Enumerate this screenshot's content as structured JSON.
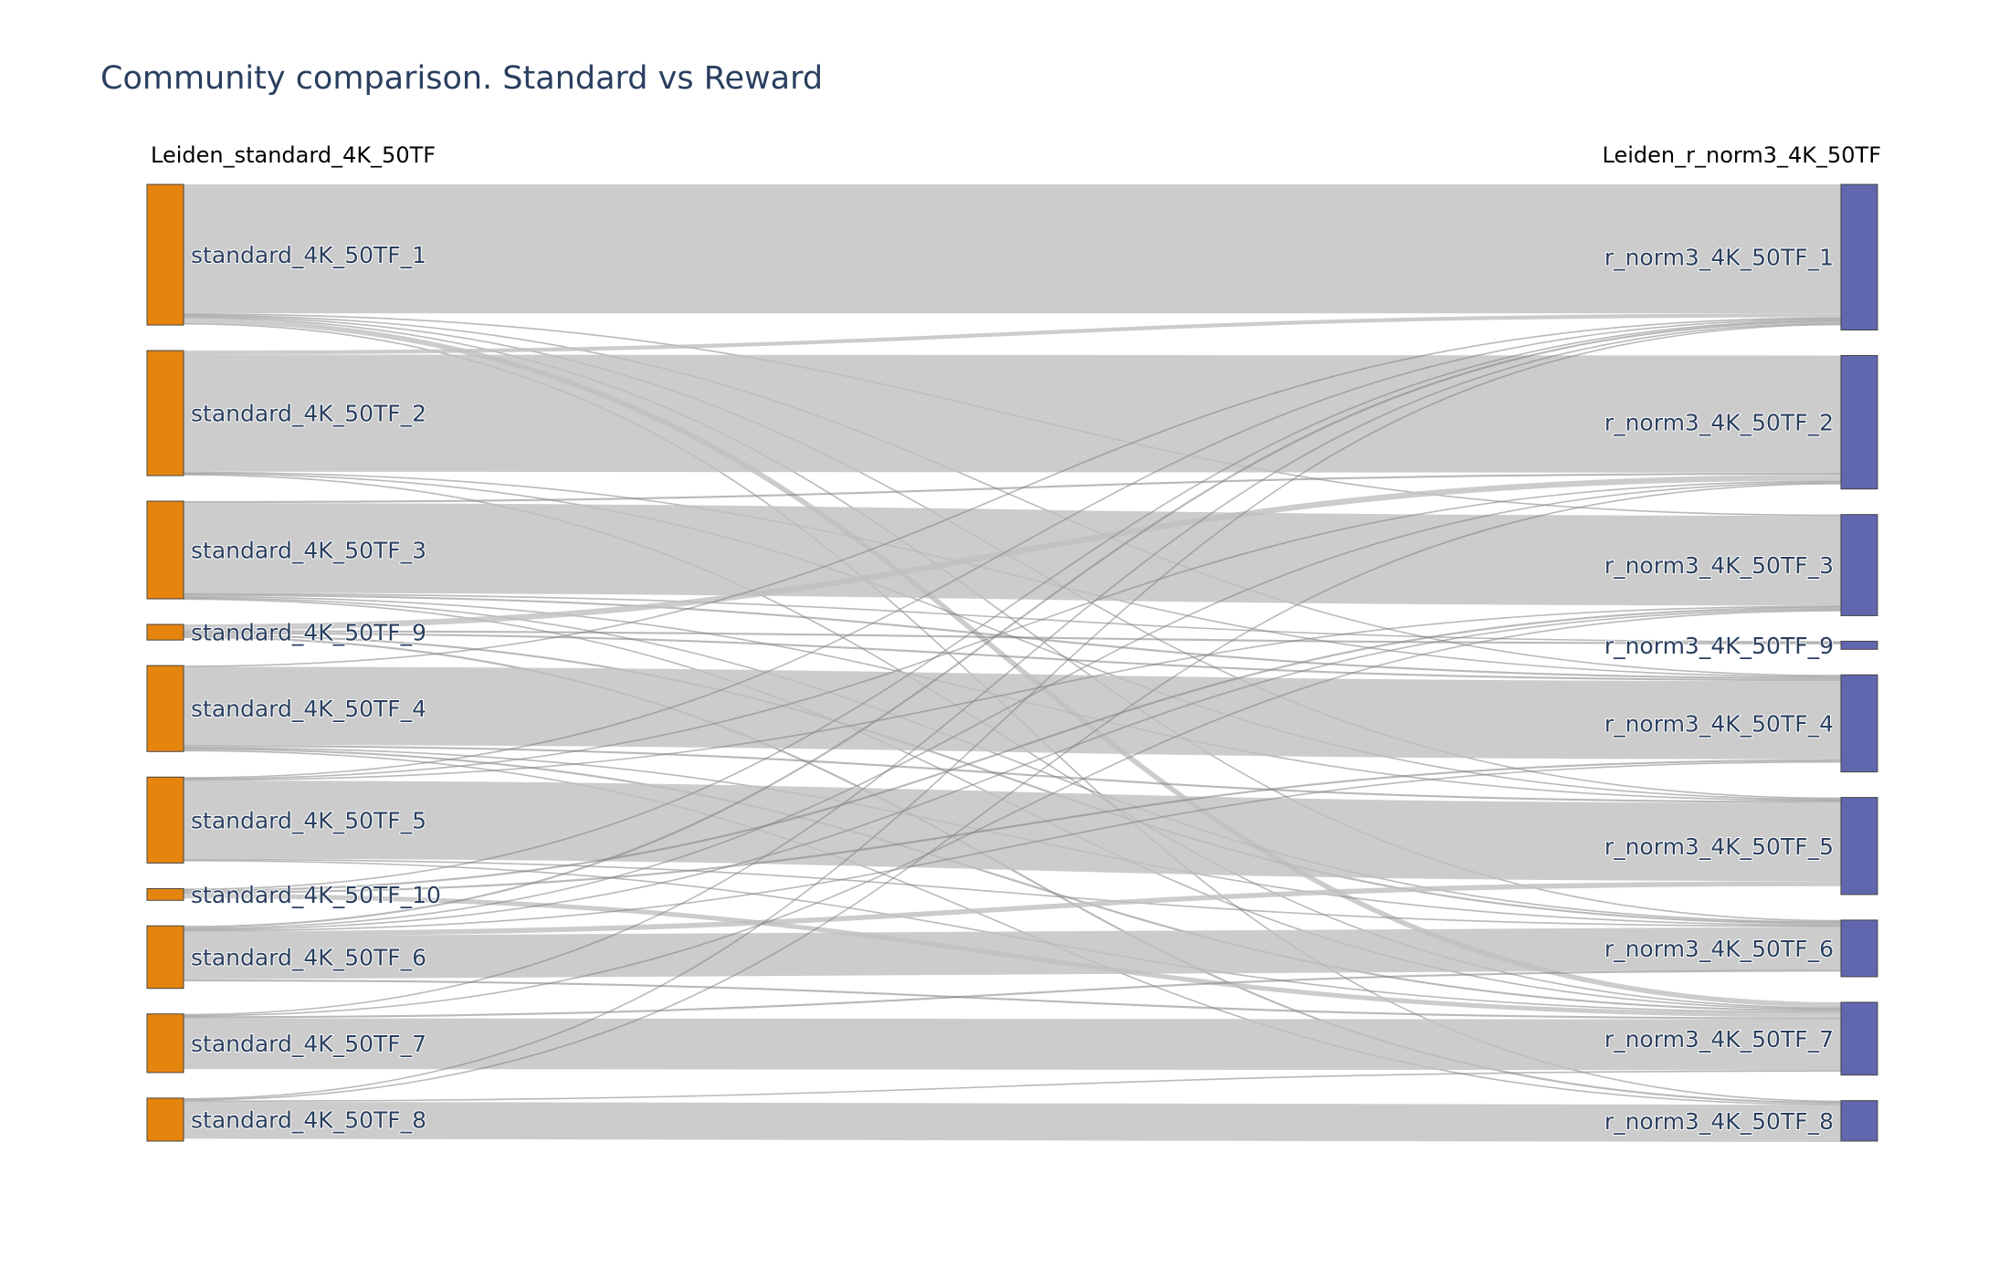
{
  "title": "Community comparison. Standard vs Reward",
  "chart_data": {
    "type": "sankey",
    "title": "Community comparison. Standard vs Reward",
    "left_axis_title": "Leiden_standard_4K_50TF",
    "right_axis_title": "Leiden_r_norm3_4K_50TF",
    "colors": {
      "left_node": "#e6850e",
      "right_node": "#6067ae",
      "link": "#bfbfbf",
      "link_dark": "#7f7f7f",
      "node_border": "#444444"
    },
    "left_nodes": [
      {
        "id": "s1",
        "label": "standard_4K_50TF_1",
        "value": 36
      },
      {
        "id": "s2",
        "label": "standard_4K_50TF_2",
        "value": 32
      },
      {
        "id": "s3",
        "label": "standard_4K_50TF_3",
        "value": 25
      },
      {
        "id": "s9",
        "label": "standard_4K_50TF_9",
        "value": 4
      },
      {
        "id": "s4",
        "label": "standard_4K_50TF_4",
        "value": 22
      },
      {
        "id": "s5",
        "label": "standard_4K_50TF_5",
        "value": 22
      },
      {
        "id": "s10",
        "label": "standard_4K_50TF_10",
        "value": 3
      },
      {
        "id": "s6",
        "label": "standard_4K_50TF_6",
        "value": 16
      },
      {
        "id": "s7",
        "label": "standard_4K_50TF_7",
        "value": 15
      },
      {
        "id": "s8",
        "label": "standard_4K_50TF_8",
        "value": 11
      }
    ],
    "right_nodes": [
      {
        "id": "r1",
        "label": "r_norm3_4K_50TF_1",
        "value": 36
      },
      {
        "id": "r2",
        "label": "r_norm3_4K_50TF_2",
        "value": 33
      },
      {
        "id": "r3",
        "label": "r_norm3_4K_50TF_3",
        "value": 25
      },
      {
        "id": "r9",
        "label": "r_norm3_4K_50TF_9",
        "value": 2
      },
      {
        "id": "r4",
        "label": "r_norm3_4K_50TF_4",
        "value": 24
      },
      {
        "id": "r5",
        "label": "r_norm3_4K_50TF_5",
        "value": 24
      },
      {
        "id": "r6",
        "label": "r_norm3_4K_50TF_6",
        "value": 14
      },
      {
        "id": "r7",
        "label": "r_norm3_4K_50TF_7",
        "value": 18
      },
      {
        "id": "r8",
        "label": "r_norm3_4K_50TF_8",
        "value": 10
      }
    ],
    "links": [
      {
        "source": "s1",
        "target": "r1",
        "value": 33
      },
      {
        "source": "s1",
        "target": "r3",
        "value": 0.3
      },
      {
        "source": "s1",
        "target": "r4",
        "value": 0.3
      },
      {
        "source": "s1",
        "target": "r5",
        "value": 0.3
      },
      {
        "source": "s1",
        "target": "r6",
        "value": 0.3
      },
      {
        "source": "s1",
        "target": "r7",
        "value": 1.3
      },
      {
        "source": "s1",
        "target": "r8",
        "value": 0.3
      },
      {
        "source": "s2",
        "target": "r1",
        "value": 1
      },
      {
        "source": "s2",
        "target": "r2",
        "value": 30
      },
      {
        "source": "s2",
        "target": "r4",
        "value": 0.3
      },
      {
        "source": "s2",
        "target": "r5",
        "value": 0.3
      },
      {
        "source": "s2",
        "target": "r7",
        "value": 0.3
      },
      {
        "source": "s3",
        "target": "r2",
        "value": 0.5
      },
      {
        "source": "s3",
        "target": "r3",
        "value": 23
      },
      {
        "source": "s3",
        "target": "r9",
        "value": 0.3
      },
      {
        "source": "s3",
        "target": "r4",
        "value": 0.5
      },
      {
        "source": "s3",
        "target": "r5",
        "value": 0.3
      },
      {
        "source": "s3",
        "target": "r6",
        "value": 0.3
      },
      {
        "source": "s3",
        "target": "r7",
        "value": 0.3
      },
      {
        "source": "s9",
        "target": "r2",
        "value": 1.5
      },
      {
        "source": "s9",
        "target": "r9",
        "value": 0.5
      },
      {
        "source": "s9",
        "target": "r4",
        "value": 0.5
      },
      {
        "source": "s9",
        "target": "r6",
        "value": 0.5
      },
      {
        "source": "s9",
        "target": "r8",
        "value": 0.5
      },
      {
        "source": "s4",
        "target": "r1",
        "value": 0.3
      },
      {
        "source": "s4",
        "target": "r4",
        "value": 20
      },
      {
        "source": "s4",
        "target": "r5",
        "value": 0.5
      },
      {
        "source": "s4",
        "target": "r6",
        "value": 0.3
      },
      {
        "source": "s4",
        "target": "r7",
        "value": 0.5
      },
      {
        "source": "s4",
        "target": "r8",
        "value": 0.3
      },
      {
        "source": "s5",
        "target": "r1",
        "value": 0.3
      },
      {
        "source": "s5",
        "target": "r2",
        "value": 0.3
      },
      {
        "source": "s5",
        "target": "r3",
        "value": 0.3
      },
      {
        "source": "s5",
        "target": "r5",
        "value": 20
      },
      {
        "source": "s5",
        "target": "r6",
        "value": 0.3
      },
      {
        "source": "s5",
        "target": "r7",
        "value": 0.3
      },
      {
        "source": "s10",
        "target": "r1",
        "value": 0.3
      },
      {
        "source": "s10",
        "target": "r3",
        "value": 0.5
      },
      {
        "source": "s10",
        "target": "r4",
        "value": 0.5
      },
      {
        "source": "s10",
        "target": "r7",
        "value": 1.2
      },
      {
        "source": "s6",
        "target": "r1",
        "value": 0.5
      },
      {
        "source": "s6",
        "target": "r2",
        "value": 0.3
      },
      {
        "source": "s6",
        "target": "r3",
        "value": 0.3
      },
      {
        "source": "s6",
        "target": "r4",
        "value": 0.3
      },
      {
        "source": "s6",
        "target": "r5",
        "value": 1.3
      },
      {
        "source": "s6",
        "target": "r6",
        "value": 11
      },
      {
        "source": "s6",
        "target": "r7",
        "value": 0.5
      },
      {
        "source": "s7",
        "target": "r1",
        "value": 0.3
      },
      {
        "source": "s7",
        "target": "r3",
        "value": 0.3
      },
      {
        "source": "s7",
        "target": "r6",
        "value": 0.5
      },
      {
        "source": "s7",
        "target": "r7",
        "value": 13
      },
      {
        "source": "s8",
        "target": "r1",
        "value": 0.3
      },
      {
        "source": "s8",
        "target": "r2",
        "value": 0.3
      },
      {
        "source": "s8",
        "target": "r7",
        "value": 0.3
      },
      {
        "source": "s8",
        "target": "r8",
        "value": 9.5
      }
    ]
  }
}
